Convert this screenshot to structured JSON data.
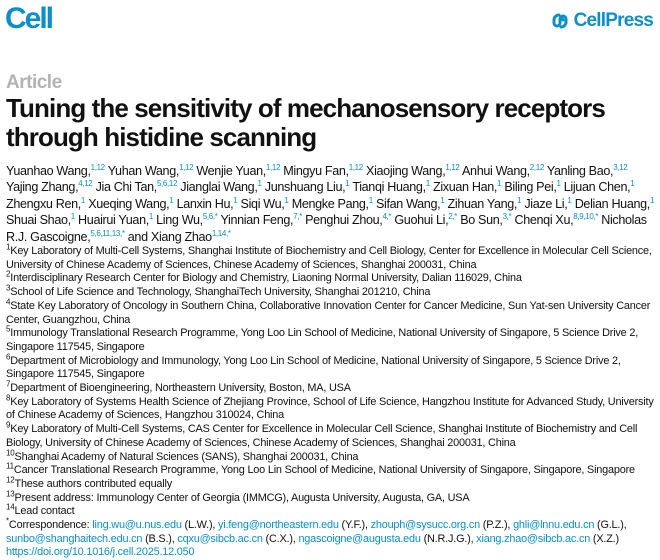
{
  "header": {
    "journal": "Cell",
    "publisher": "CellPress",
    "brand_color": "#0a8fc8"
  },
  "article_type": "Article",
  "title": "Tuning the sensitivity of mechanosensory receptors through histidine scanning",
  "authors": [
    {
      "name": "Yuanhao Wang,",
      "sup": "1,12"
    },
    {
      "name": "Yuhan Wang,",
      "sup": "1,12"
    },
    {
      "name": "Wenjie Yuan,",
      "sup": "1,12"
    },
    {
      "name": "Mingyu Fan,",
      "sup": "1,12"
    },
    {
      "name": "Xiaojing Wang,",
      "sup": "1,12"
    },
    {
      "name": "Anhui Wang,",
      "sup": "2,12"
    },
    {
      "name": "Yanling Bao,",
      "sup": "3,12"
    },
    {
      "name": "Yajing Zhang,",
      "sup": "4,12"
    },
    {
      "name": "Jia Chi Tan,",
      "sup": "5,6,12"
    },
    {
      "name": "Jianglai Wang,",
      "sup": "1"
    },
    {
      "name": "Junshuang Liu,",
      "sup": "1"
    },
    {
      "name": "Tianqi Huang,",
      "sup": "1"
    },
    {
      "name": "Zixuan Han,",
      "sup": "1"
    },
    {
      "name": "Biling Pei,",
      "sup": "1"
    },
    {
      "name": "Lijuan Chen,",
      "sup": "1"
    },
    {
      "name": "Zhengxu Ren,",
      "sup": "1"
    },
    {
      "name": "Xueqing Wang,",
      "sup": "1"
    },
    {
      "name": "Lanxin Hu,",
      "sup": "1"
    },
    {
      "name": "Siqi Wu,",
      "sup": "1"
    },
    {
      "name": "Mengke Pang,",
      "sup": "1"
    },
    {
      "name": "Sifan Wang,",
      "sup": "1"
    },
    {
      "name": "Zihuan Yang,",
      "sup": "1"
    },
    {
      "name": "Jiaze Li,",
      "sup": "1"
    },
    {
      "name": "Delian Huang,",
      "sup": "1"
    },
    {
      "name": "Shuai Shao,",
      "sup": "1"
    },
    {
      "name": "Huairui Yuan,",
      "sup": "1"
    },
    {
      "name": "Ling Wu,",
      "sup": "5,6,*"
    },
    {
      "name": "Yinnian Feng,",
      "sup": "7,*"
    },
    {
      "name": "Penghui Zhou,",
      "sup": "4,*"
    },
    {
      "name": "Guohui Li,",
      "sup": "2,*"
    },
    {
      "name": "Bo Sun,",
      "sup": "3,*"
    },
    {
      "name": "Chenqi Xu,",
      "sup": "8,9,10,*"
    },
    {
      "name": "Nicholas R.J. Gascoigne,",
      "sup": "5,6,11,13,*"
    },
    {
      "name": "and Xiang Zhao",
      "sup": "1,14,*"
    }
  ],
  "affiliations": [
    {
      "num": "1",
      "text": "Key Laboratory of Multi-Cell Systems, Shanghai Institute of Biochemistry and Cell Biology, Center for Excellence in Molecular Cell Science, University of Chinese Academy of Sciences, Chinese Academy of Sciences, Shanghai 200031, China"
    },
    {
      "num": "2",
      "text": "Interdisciplinary Research Center for Biology and Chemistry, Liaoning Normal University, Dalian 116029, China"
    },
    {
      "num": "3",
      "text": "School of Life Science and Technology, ShanghaiTech University, Shanghai 201210, China"
    },
    {
      "num": "4",
      "text": "State Key Laboratory of Oncology in Southern China, Collaborative Innovation Center for Cancer Medicine, Sun Yat-sen University Cancer Center, Guangzhou, China"
    },
    {
      "num": "5",
      "text": "Immunology Translational Research Programme, Yong Loo Lin School of Medicine, National University of Singapore, 5 Science Drive 2, Singapore 117545, Singapore"
    },
    {
      "num": "6",
      "text": "Department of Microbiology and Immunology, Yong Loo Lin School of Medicine, National University of Singapore, 5 Science Drive 2, Singapore 117545, Singapore"
    },
    {
      "num": "7",
      "text": "Department of Bioengineering, Northeastern University, Boston, MA, USA"
    },
    {
      "num": "8",
      "text": "Key Laboratory of Systems Health Science of Zhejiang Province, School of Life Science, Hangzhou Institute for Advanced Study, University of Chinese Academy of Sciences, Hangzhou 310024, China"
    },
    {
      "num": "9",
      "text": "Key Laboratory of Multi-Cell Systems, CAS Center for Excellence in Molecular Cell Science, Shanghai Institute of Biochemistry and Cell Biology, University of Chinese Academy of Sciences, Chinese Academy of Sciences, Shanghai 200031, China"
    },
    {
      "num": "10",
      "text": "Shanghai Academy of Natural Sciences (SANS), Shanghai 200031, China"
    },
    {
      "num": "11",
      "text": "Cancer Translational Research Programme, Yong Loo Lin School of Medicine, National University of Singapore, Singapore, Singapore"
    },
    {
      "num": "12",
      "text": "These authors contributed equally"
    },
    {
      "num": "13",
      "text": "Present address: Immunology Center of Georgia (IMMCG), Augusta University, Augusta, GA, USA"
    },
    {
      "num": "14",
      "text": "Lead contact"
    }
  ],
  "correspondence": {
    "mark": "*",
    "label": "Correspondence: ",
    "contacts": [
      {
        "email": "ling.wu@u.nus.edu",
        "initials": " (L.W.), "
      },
      {
        "email": "yi.feng@northeastern.edu",
        "initials": " (Y.F.), "
      },
      {
        "email": "zhouph@sysucc.org.cn",
        "initials": " (P.Z.), "
      },
      {
        "email": "ghli@lnnu.edu.cn",
        "initials": " (G.L.), "
      },
      {
        "email": "sunbo@shanghaitech.edu.cn",
        "initials": " (B.S.), "
      },
      {
        "email": "cqxu@sibcb.ac.cn",
        "initials": " (C.X.), "
      },
      {
        "email": "ngascoigne@augusta.edu",
        "initials": " (N.R.J.G.), "
      },
      {
        "email": "xiang.zhao@sibcb.ac.cn",
        "initials": " (X.Z.)"
      }
    ]
  },
  "doi": "https://doi.org/10.1016/j.cell.2025.12.050"
}
